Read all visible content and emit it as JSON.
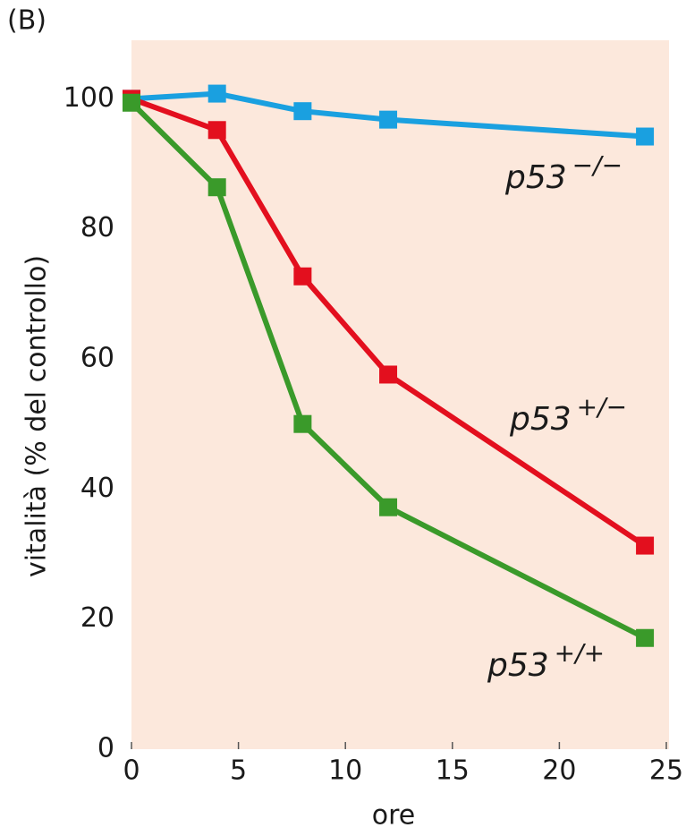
{
  "chart_data": {
    "type": "line",
    "title": "(B)",
    "x_label": "ore",
    "y_label": "vitalità (% del controllo)",
    "x": [
      0,
      4,
      8,
      12,
      24
    ],
    "series": [
      {
        "name": "p53−/−",
        "color": "#1aa0e0",
        "values": [
          100,
          100.8,
          98.1,
          96.8,
          94.2
        ]
      },
      {
        "name": "p53+/−",
        "color": "#e30f1e",
        "values": [
          100,
          95.2,
          72.7,
          57.6,
          31.3
        ]
      },
      {
        "name": "p53+/+",
        "color": "#3a9a2a",
        "values": [
          99.4,
          86.4,
          50,
          37.2,
          17.1
        ]
      }
    ],
    "xlim": [
      0,
      25
    ],
    "xticks": [
      0,
      5,
      10,
      15,
      20,
      25
    ],
    "ylim": [
      0,
      109
    ],
    "yticks": [
      0,
      20,
      40,
      60,
      80,
      100
    ],
    "background": "#fce8dc"
  }
}
